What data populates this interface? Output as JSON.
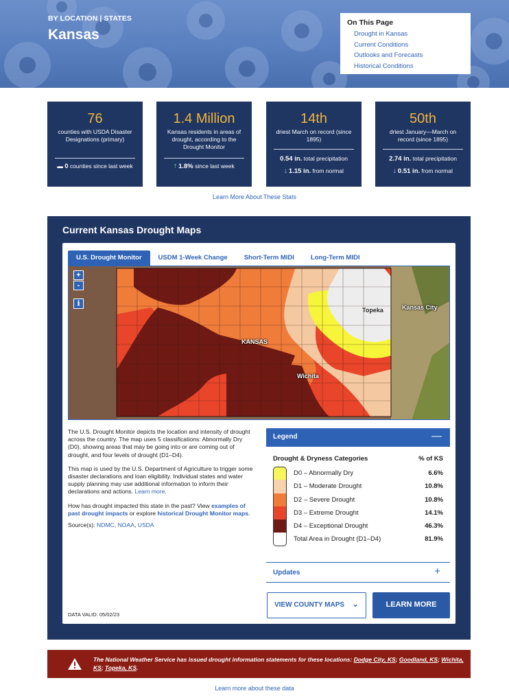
{
  "hero": {
    "breadcrumb": "BY LOCATION | STATES",
    "title": "Kansas"
  },
  "on_this_page": {
    "heading": "On This Page",
    "links": [
      "Drought in Kansas",
      "Current Conditions",
      "Outlooks and Forecasts",
      "Historical Conditions"
    ]
  },
  "stats": [
    {
      "value": "76",
      "desc": "counties with USDA Disaster Designations (primary)",
      "foot_icon": "dash-icon",
      "foot_value": "0",
      "foot_text": "counties since last week"
    },
    {
      "value": "1.4 Million",
      "desc": "Kansas residents in areas of drought, according to the Drought Monitor",
      "foot_icon": "arrow-up-icon",
      "foot_value": "1.8%",
      "foot_text": "since last week"
    },
    {
      "value": "14th",
      "desc": "driest March on record (since 1895)",
      "line1_value": "0.54 in.",
      "line1_text": "total precipitation",
      "line2_value": "1.15 in.",
      "line2_text": "from normal"
    },
    {
      "value": "50th",
      "desc": "driest January—March on record (since 1895)",
      "line1_value": "2.74 in.",
      "line1_text": "total precipitation",
      "line2_value": "0.51 in.",
      "line2_text": "from normal"
    }
  ],
  "learn_stats": "Learn More About These Stats",
  "maps": {
    "title": "Current Kansas Drought Maps",
    "tabs": [
      "U.S. Drought Monitor",
      "USDM 1-Week Change",
      "Short-Term MIDI",
      "Long-Term MIDI"
    ],
    "zoom_in": "+",
    "zoom_out": "-",
    "map_labels": [
      "KANSAS",
      "Topeka",
      "Kansas City",
      "Wichita"
    ]
  },
  "info": {
    "p1": "The U.S. Drought Monitor depicts the location and intensity of drought across the country. The map uses 5 classifications: Abnormally Dry (D0), showing areas that may be going into or are coming out of drought, and four levels of drought (D1–D4).",
    "p2": "This map is used by the U.S. Department of Agriculture to trigger some disaster declarations and loan eligibility. Individual states and water supply planning may use additional information to inform their declarations and actions.",
    "p2_link": "Learn more",
    "p3_a": "How has drought impacted this state in the past? View ",
    "p3_link1": "examples of past drought impacts",
    "p3_b": " or explore ",
    "p3_link2": "historical Drought Monitor maps",
    "sources_label": "Source(s): ",
    "sources": [
      "NDMC",
      "NOAA",
      "USDA"
    ],
    "data_valid": "DATA VALID: 05/02/23"
  },
  "legend": {
    "title": "Legend",
    "col1": "Drought & Dryness Categories",
    "col2": "% of KS",
    "rows": [
      {
        "label": "D0 – Abnormally Dry",
        "pct": "6.6%",
        "color": "#ffff00"
      },
      {
        "label": "D1 – Moderate Drought",
        "pct": "10.8%",
        "color": "#fcd37f"
      },
      {
        "label": "D2 – Severe Drought",
        "pct": "10.8%",
        "color": "#ffaa00"
      },
      {
        "label": "D3 – Extreme Drought",
        "pct": "14.1%",
        "color": "#e60000"
      },
      {
        "label": "D4 – Exceptional Drought",
        "pct": "46.3%",
        "color": "#730000"
      },
      {
        "label": "Total Area in Drought (D1–D4)",
        "pct": "81.9%",
        "color": "#ffffff"
      }
    ],
    "updates": "Updates"
  },
  "buttons": {
    "county": "VIEW COUNTY MAPS",
    "learn": "LEARN MORE"
  },
  "alert": {
    "text": "The National Weather Service has issued drought information statements for these locations: ",
    "locations": [
      "Dodge City, KS",
      "Goodland, KS",
      "Wichita, KS",
      "Topeka, KS"
    ]
  },
  "learn_data": "Learn more about these data"
}
